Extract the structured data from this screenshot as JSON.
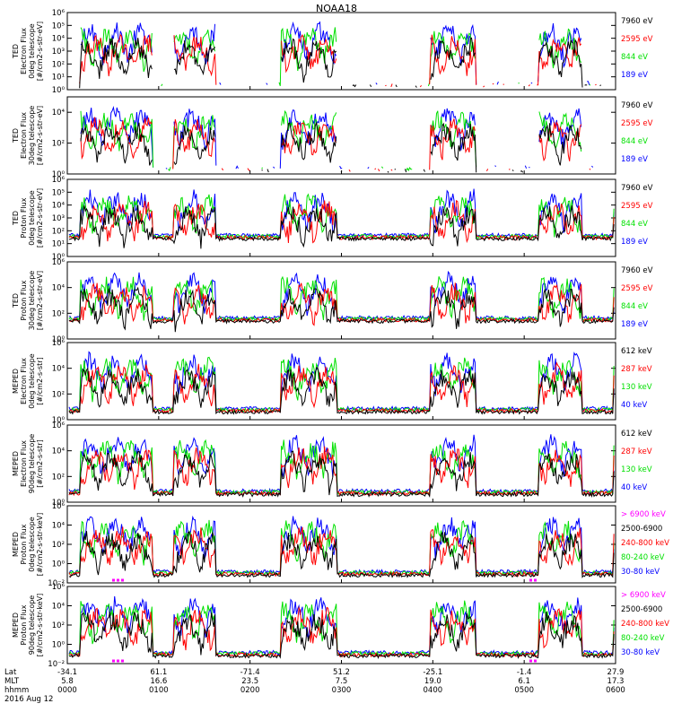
{
  "title": "NOAA18",
  "colors": {
    "black": "#000000",
    "red": "#ff0000",
    "green": "#00e000",
    "blue": "#0000ff",
    "magenta": "#ff00ff"
  },
  "chart_data": [
    {
      "type": "line",
      "ylabel_lines": [
        "TED",
        "Electron Flux",
        "0deg telescope",
        "[#/cm2-s-str-eV]"
      ],
      "ylim": [
        1,
        1000000
      ],
      "log_y": true,
      "ytick_exps": [
        0,
        1,
        2,
        3,
        4,
        5,
        6
      ],
      "ytick_labels": [
        "10⁰",
        "10¹",
        "10²",
        "10³",
        "10⁴",
        "10⁵",
        "10⁶"
      ],
      "legend": [
        {
          "label": "7960 eV",
          "color": "#000000"
        },
        {
          "label": "2595 eV",
          "color": "#ff0000"
        },
        {
          "label": "844 eV",
          "color": "#00e000"
        },
        {
          "label": "189 eV",
          "color": "#0000ff"
        }
      ]
    },
    {
      "type": "line",
      "ylabel_lines": [
        "TED",
        "Electron Flux",
        "30deg telescope",
        "[#/cm2-s-str-eV]"
      ],
      "ylim": [
        1,
        100000
      ],
      "log_y": true,
      "ytick_exps": [
        0,
        2,
        4
      ],
      "ytick_labels": [
        "10⁰",
        "10²",
        "10⁴"
      ],
      "legend": [
        {
          "label": "7960 eV",
          "color": "#000000"
        },
        {
          "label": "2595 eV",
          "color": "#ff0000"
        },
        {
          "label": "844 eV",
          "color": "#00e000"
        },
        {
          "label": "189 eV",
          "color": "#0000ff"
        }
      ]
    },
    {
      "type": "line",
      "ylabel_lines": [
        "TED",
        "Proton Flux",
        "0deg telescope",
        "[#/cm2-s-str-eV]"
      ],
      "ylim": [
        1,
        1000000
      ],
      "log_y": true,
      "ytick_exps": [
        0,
        1,
        2,
        3,
        4,
        5,
        6
      ],
      "ytick_labels": [
        "10⁰",
        "10¹",
        "10²",
        "10³",
        "10⁴",
        "10⁵",
        "10⁶"
      ],
      "legend": [
        {
          "label": "7960 eV",
          "color": "#000000"
        },
        {
          "label": "2595 eV",
          "color": "#ff0000"
        },
        {
          "label": "844 eV",
          "color": "#00e000"
        },
        {
          "label": "189 eV",
          "color": "#0000ff"
        }
      ]
    },
    {
      "type": "line",
      "ylabel_lines": [
        "TED",
        "Proton Flux",
        "30deg telescope",
        "[#/cm2-s-str-eV]"
      ],
      "ylim": [
        1,
        1000000
      ],
      "log_y": true,
      "ytick_exps": [
        0,
        2,
        4,
        6
      ],
      "ytick_labels": [
        "10⁰",
        "10²",
        "10⁴",
        "10⁶"
      ],
      "legend": [
        {
          "label": "7960 eV",
          "color": "#000000"
        },
        {
          "label": "2595 eV",
          "color": "#ff0000"
        },
        {
          "label": "844 eV",
          "color": "#00e000"
        },
        {
          "label": "189 eV",
          "color": "#0000ff"
        }
      ]
    },
    {
      "type": "line",
      "ylabel_lines": [
        "MEPED",
        "Electron Flux",
        "0deg telescope",
        "[#/cm2-s-str]"
      ],
      "ylim": [
        1,
        1000000
      ],
      "log_y": true,
      "ytick_exps": [
        0,
        2,
        4,
        6
      ],
      "ytick_labels": [
        "10⁰",
        "10²",
        "10⁴",
        "10⁶"
      ],
      "legend": [
        {
          "label": "612 keV",
          "color": "#000000"
        },
        {
          "label": "287 keV",
          "color": "#ff0000"
        },
        {
          "label": "130 keV",
          "color": "#00e000"
        },
        {
          "label": "40 keV",
          "color": "#0000ff"
        }
      ]
    },
    {
      "type": "line",
      "ylabel_lines": [
        "MEPED",
        "Electron Flux",
        "90deg telescope",
        "[#/cm2-s-str]"
      ],
      "ylim": [
        1,
        1000000
      ],
      "log_y": true,
      "ytick_exps": [
        0,
        2,
        4,
        6
      ],
      "ytick_labels": [
        "10⁰",
        "10²",
        "10⁴",
        "10⁶"
      ],
      "legend": [
        {
          "label": "612 keV",
          "color": "#000000"
        },
        {
          "label": "287 keV",
          "color": "#ff0000"
        },
        {
          "label": "130 keV",
          "color": "#00e000"
        },
        {
          "label": "40 keV",
          "color": "#0000ff"
        }
      ]
    },
    {
      "type": "line",
      "ylabel_lines": [
        "MEPED",
        "Proton Flux",
        "0deg telescope",
        "[#/cm2-s-str-keV]"
      ],
      "ylim": [
        0.01,
        1000000
      ],
      "log_y": true,
      "ytick_exps": [
        -2,
        0,
        2,
        4,
        6
      ],
      "ytick_labels": [
        "10⁻²",
        "10⁰",
        "10²",
        "10⁴",
        "10⁶"
      ],
      "legend": [
        {
          "label": "> 6900 keV",
          "color": "#ff00ff"
        },
        {
          "label": "2500-6900",
          "color": "#000000"
        },
        {
          "label": "240-800 keV",
          "color": "#ff0000"
        },
        {
          "label": "80-240 keV",
          "color": "#00e000"
        },
        {
          "label": "30-80 keV",
          "color": "#0000ff"
        }
      ]
    },
    {
      "type": "line",
      "ylabel_lines": [
        "MEPED",
        "Proton Flux",
        "90deg telescope",
        "[#/cm2-s-str-keV]"
      ],
      "ylim": [
        0.01,
        1000000
      ],
      "log_y": true,
      "ytick_exps": [
        -2,
        0,
        2,
        4,
        6
      ],
      "ytick_labels": [
        "10⁻²",
        "10⁰",
        "10²",
        "10⁴",
        "10⁶"
      ],
      "legend": [
        {
          "label": "> 6900 keV",
          "color": "#ff00ff"
        },
        {
          "label": "2500-6900",
          "color": "#000000"
        },
        {
          "label": "240-800 keV",
          "color": "#ff0000"
        },
        {
          "label": "80-240 keV",
          "color": "#00e000"
        },
        {
          "label": "30-80 keV",
          "color": "#0000ff"
        }
      ]
    }
  ],
  "x_axis": {
    "row_labels": [
      "Lat",
      "MLT",
      "hhmm",
      "2016 Aug 12"
    ],
    "ticks": [
      {
        "lat": "-34.1",
        "mlt": "5.8",
        "hhmm": "0000"
      },
      {
        "lat": "61.1",
        "mlt": "16.6",
        "hhmm": "0100"
      },
      {
        "lat": "-71.4",
        "mlt": "23.5",
        "hhmm": "0200"
      },
      {
        "lat": "51.2",
        "mlt": "7.5",
        "hhmm": "0300"
      },
      {
        "lat": "-25.1",
        "mlt": "19.0",
        "hhmm": "0400"
      },
      {
        "lat": "-1.4",
        "mlt": "6.1",
        "hhmm": "0500"
      },
      {
        "lat": "27.9",
        "mlt": "17.3",
        "hhmm": "0600"
      }
    ]
  }
}
